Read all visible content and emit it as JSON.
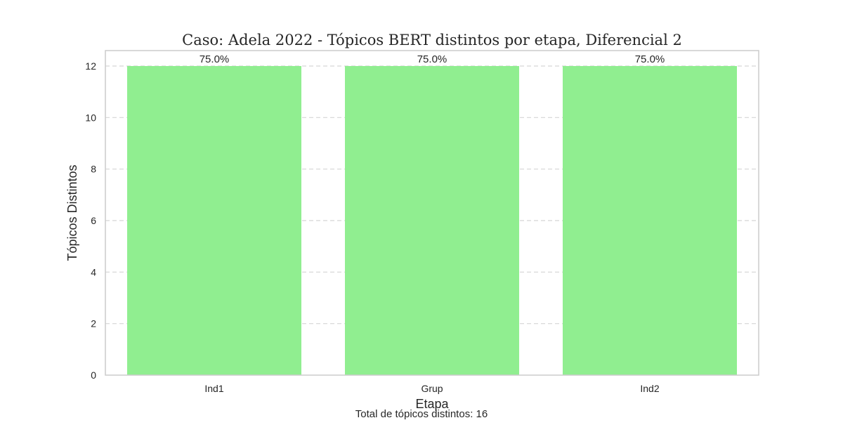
{
  "chart_data": {
    "type": "bar",
    "title": "Caso: Adela 2022 - Tópicos BERT distintos por etapa, Diferencial 2",
    "xlabel": "Etapa",
    "ylabel": "Tópicos Distintos",
    "categories": [
      "Ind1",
      "Grup",
      "Ind2"
    ],
    "values": [
      12,
      12,
      12
    ],
    "data_labels": [
      "75.0%",
      "75.0%",
      "75.0%"
    ],
    "ylim": [
      0,
      12.6
    ],
    "yticks": [
      0,
      2,
      4,
      6,
      8,
      10,
      12
    ],
    "grid": "horizontal dashed",
    "bar_color": "#90ee90",
    "footnote": "Total de tópicos distintos: 16"
  }
}
